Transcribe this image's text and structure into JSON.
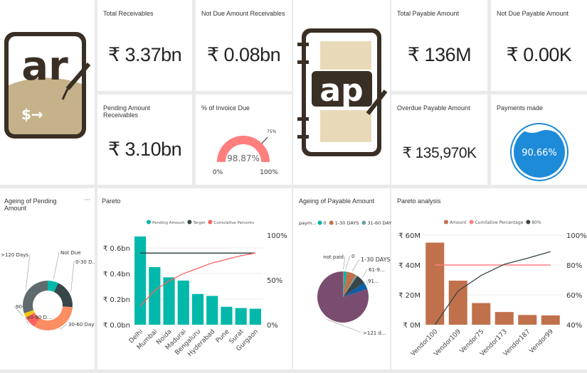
{
  "colors": {
    "teal": "#01B8AA",
    "dark": "#374649",
    "orange": "#FD8D62",
    "red": "#FD625E",
    "yellow": "#F2C80F",
    "gray": "#5F6B6D",
    "brown": "#C0704A",
    "blue": "#0E5EA8",
    "purple": "#7A4D70",
    "gauge": "#FF7F7F",
    "water": "#1E8BD8"
  },
  "logos": {
    "ar": "ar",
    "ap": "ap"
  },
  "kpis": {
    "total_receivables": {
      "label": "Total Receivables",
      "value": "₹ 3.37bn"
    },
    "not_due_receivables": {
      "label": "Not Due Amount Receivables",
      "value": "₹ 0.08bn"
    },
    "pending_receivables": {
      "label": "Pending Amount Receivables",
      "value": "₹ 3.10bn"
    },
    "total_payable": {
      "label": "Total Payable Amount",
      "value": "₹ 136M"
    },
    "not_due_payable": {
      "label": "Not Due Payable Amount",
      "value": "₹ 0.00K"
    },
    "overdue_payable": {
      "label": "Overdue Payable Amount",
      "value": "₹ 135,970K"
    }
  },
  "gauge": {
    "label": "% of Invoice Due",
    "value": "98.87%",
    "percent": 98.87,
    "target_label": "75%",
    "target": 75,
    "min": "0%",
    "max": "100%"
  },
  "payments": {
    "label": "Payments made",
    "value": "90.66%",
    "percent": 90.66
  },
  "more_options": "···",
  "chart_data": [
    {
      "type": "pie",
      "title": "Ageing of Pending Amount",
      "donut": true,
      "slices": [
        {
          "label": "Not Due",
          "value": 7,
          "color": "#01B8AA"
        },
        {
          "label": "0-30 D...",
          "value": 19,
          "color": "#374649"
        },
        {
          "label": "30-60 Days",
          "value": 33,
          "color": "#FD8D62"
        },
        {
          "label": "60-90 D...",
          "value": 8,
          "color": "#FD625E"
        },
        {
          "label": "90-...",
          "value": 3,
          "color": "#F2C80F"
        },
        {
          "label": ">120 Days",
          "value": 30,
          "color": "#5F6B6D"
        }
      ]
    },
    {
      "type": "bar",
      "title": "Pareto",
      "legend": [
        "Pending Amount",
        "Target",
        "Cumulative Percents"
      ],
      "legend_position": "top",
      "categories": [
        "Delhi",
        "Mumbai",
        "Noida",
        "Madurai",
        "Bengaluru",
        "Hyderabad",
        "Pune",
        "Surat",
        "Gurgaon"
      ],
      "values": [
        0.69,
        0.45,
        0.37,
        0.345,
        0.24,
        0.225,
        0.14,
        0.13,
        0.125
      ],
      "cumulative": [
        21,
        38,
        49,
        57,
        63,
        69,
        73,
        77,
        80
      ],
      "target": 80,
      "yticks": [
        "₹ 0.0bn",
        "₹ 0.2bn",
        "₹ 0.4bn",
        "₹ 0.6bn"
      ],
      "ylim": [
        0,
        0.7
      ],
      "y2ticks": [
        "0%",
        "50%",
        "100%"
      ],
      "y2lim": [
        0,
        100
      ]
    },
    {
      "type": "pie",
      "title": "Ageing of Payable Amount",
      "legend_title": "paym...",
      "legend": [
        {
          "label": "0",
          "color": "#01B8AA"
        },
        {
          "label": "1-30 DAYS",
          "color": "#C0704A"
        },
        {
          "label": "31-60 DAYS",
          "color": "#6FA3AE"
        }
      ],
      "legend_position": "top",
      "slices": [
        {
          "label": "not paid",
          "value": 0.5,
          "color": "#FD625E"
        },
        {
          "label": "0",
          "value": 2,
          "color": "#01B8AA"
        },
        {
          "label": "1-30 DAYS",
          "value": 6,
          "color": "#C0704A"
        },
        {
          "label": "",
          "value": 1,
          "color": "#6FA3AE"
        },
        {
          "label": "61-9...",
          "value": 6,
          "color": "#374649"
        },
        {
          "label": "91...",
          "value": 4.5,
          "color": "#0E5EA8"
        },
        {
          "label": ">121 d...",
          "value": 80,
          "color": "#7A4D70"
        }
      ]
    },
    {
      "type": "bar",
      "title": "Pareto analysis",
      "legend": [
        "Amount",
        "Cumilative Percentage",
        "80%"
      ],
      "legend_position": "top",
      "categories": [
        "Vendor100",
        "Vendor109",
        "Vendor75",
        "Vendor173",
        "Vendor187",
        "Vendor99"
      ],
      "values": [
        55,
        29.5,
        14.5,
        8.5,
        6.5,
        6.2
      ],
      "cumulative": [
        40,
        62.5,
        73,
        80.5,
        84.5,
        89
      ],
      "target": 80,
      "yticks": [
        "₹ 0M",
        "₹ 20M",
        "₹ 40M",
        "₹ 60M"
      ],
      "ylim": [
        0,
        60
      ],
      "y2ticks": [
        "40%",
        "60%",
        "80%",
        "100%"
      ],
      "y2lim": [
        40,
        100
      ]
    }
  ]
}
